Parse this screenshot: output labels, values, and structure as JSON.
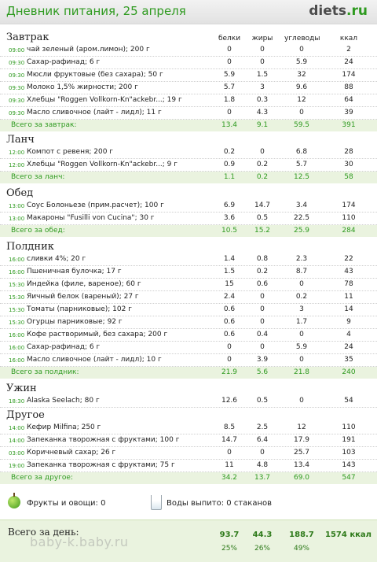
{
  "header": {
    "title": "Дневник питания, 25 апреля",
    "logo_main": "diets",
    "logo_tld": ".ru"
  },
  "columns": {
    "protein": "белки",
    "fat": "жиры",
    "carbs": "углеводы",
    "kcal": "ккал"
  },
  "sections": [
    {
      "title": "Завтрак",
      "show_headers": true,
      "rows": [
        {
          "time": "09:00",
          "food": "чай зеленый (аром.лимон); 200 г",
          "p": "0",
          "f": "0",
          "c": "0",
          "k": "2"
        },
        {
          "time": "09:30",
          "food": "Сахар-рафинад; 6 г",
          "p": "0",
          "f": "0",
          "c": "5.9",
          "k": "24"
        },
        {
          "time": "09:30",
          "food": "Мюсли фруктовые (без сахара); 50 г",
          "p": "5.9",
          "f": "1.5",
          "c": "32",
          "k": "174"
        },
        {
          "time": "09:30",
          "food": "Молоко 1,5% жирности; 200 г",
          "p": "5.7",
          "f": "3",
          "c": "9.6",
          "k": "88"
        },
        {
          "time": "09:30",
          "food": "Хлебцы \"Roggen Vollkorn-Kn\"ackebr...; 19 г",
          "p": "1.8",
          "f": "0.3",
          "c": "12",
          "k": "64"
        },
        {
          "time": "09:30",
          "food": "Масло сливочное (лайт - лидл); 11 г",
          "p": "0",
          "f": "4.3",
          "c": "0",
          "k": "39"
        }
      ],
      "total": {
        "label": "Всего за завтрак:",
        "p": "13.4",
        "f": "9.1",
        "c": "59.5",
        "k": "391"
      }
    },
    {
      "title": "Ланч",
      "show_headers": false,
      "rows": [
        {
          "time": "12:00",
          "food": "Компот с ревеня; 200 г",
          "p": "0.2",
          "f": "0",
          "c": "6.8",
          "k": "28"
        },
        {
          "time": "12:00",
          "food": "Хлебцы \"Roggen Vollkorn-Kn\"ackebr...; 9 г",
          "p": "0.9",
          "f": "0.2",
          "c": "5.7",
          "k": "30"
        }
      ],
      "total": {
        "label": "Всего за ланч:",
        "p": "1.1",
        "f": "0.2",
        "c": "12.5",
        "k": "58"
      }
    },
    {
      "title": "Обед",
      "show_headers": false,
      "rows": [
        {
          "time": "13:00",
          "food": "Соус Болоньезе (прим.расчет); 100 г",
          "p": "6.9",
          "f": "14.7",
          "c": "3.4",
          "k": "174"
        },
        {
          "time": "13:00",
          "food": "Макароны \"Fusilli von Cucina\"; 30 г",
          "p": "3.6",
          "f": "0.5",
          "c": "22.5",
          "k": "110"
        }
      ],
      "total": {
        "label": "Всего за обед:",
        "p": "10.5",
        "f": "15.2",
        "c": "25.9",
        "k": "284"
      }
    },
    {
      "title": "Полдник",
      "show_headers": false,
      "rows": [
        {
          "time": "16:00",
          "food": "сливки 4%; 20 г",
          "p": "1.4",
          "f": "0.8",
          "c": "2.3",
          "k": "22"
        },
        {
          "time": "16:00",
          "food": "Пшеничная булочка; 17 г",
          "p": "1.5",
          "f": "0.2",
          "c": "8.7",
          "k": "43"
        },
        {
          "time": "15:30",
          "food": "Индейка (филе, вареное); 60 г",
          "p": "15",
          "f": "0.6",
          "c": "0",
          "k": "78"
        },
        {
          "time": "15:30",
          "food": "Яичный белок (вареный); 27 г",
          "p": "2.4",
          "f": "0",
          "c": "0.2",
          "k": "11"
        },
        {
          "time": "15:30",
          "food": "Томаты (парниковые); 102 г",
          "p": "0.6",
          "f": "0",
          "c": "3",
          "k": "14"
        },
        {
          "time": "15:30",
          "food": "Огурцы парниковые; 92 г",
          "p": "0.6",
          "f": "0",
          "c": "1.7",
          "k": "9"
        },
        {
          "time": "16:00",
          "food": "Кофе растворимый, без сахара; 200 г",
          "p": "0.6",
          "f": "0.4",
          "c": "0",
          "k": "4"
        },
        {
          "time": "16:00",
          "food": "Сахар-рафинад; 6 г",
          "p": "0",
          "f": "0",
          "c": "5.9",
          "k": "24"
        },
        {
          "time": "16:00",
          "food": "Масло сливочное (лайт - лидл); 10 г",
          "p": "0",
          "f": "3.9",
          "c": "0",
          "k": "35"
        }
      ],
      "total": {
        "label": "Всего за полдник:",
        "p": "21.9",
        "f": "5.6",
        "c": "21.8",
        "k": "240"
      }
    },
    {
      "title": "Ужин",
      "show_headers": false,
      "rows": [
        {
          "time": "18:30",
          "food": "Alaska Seelach; 80 г",
          "p": "12.6",
          "f": "0.5",
          "c": "0",
          "k": "54"
        }
      ],
      "total": null
    },
    {
      "title": "Другое",
      "show_headers": false,
      "rows": [
        {
          "time": "14:00",
          "food": "Кефир Milfina; 250 г",
          "p": "8.5",
          "f": "2.5",
          "c": "12",
          "k": "110"
        },
        {
          "time": "14:00",
          "food": "Запеканка творожная с фруктами; 100 г",
          "p": "14.7",
          "f": "6.4",
          "c": "17.9",
          "k": "191"
        },
        {
          "time": "03:00",
          "food": "Коричневый сахар; 26 г",
          "p": "0",
          "f": "0",
          "c": "25.7",
          "k": "103"
        },
        {
          "time": "19:00",
          "food": "Запеканка творожная с фруктами; 75 г",
          "p": "11",
          "f": "4.8",
          "c": "13.4",
          "k": "143"
        }
      ],
      "total": {
        "label": "Всего за другое:",
        "p": "34.2",
        "f": "13.7",
        "c": "69.0",
        "k": "547"
      }
    }
  ],
  "extras": {
    "fruits": "Фрукты и овощи: 0",
    "water": "Воды выпито: 0 стаканов"
  },
  "day_total": {
    "label": "Всего за день:",
    "p": "93.7",
    "f": "44.3",
    "c": "188.7",
    "kcal": "1574 ккал",
    "p_pct": "25%",
    "f_pct": "26%",
    "c_pct": "49%"
  },
  "watermark": "baby-k.baby.ru"
}
